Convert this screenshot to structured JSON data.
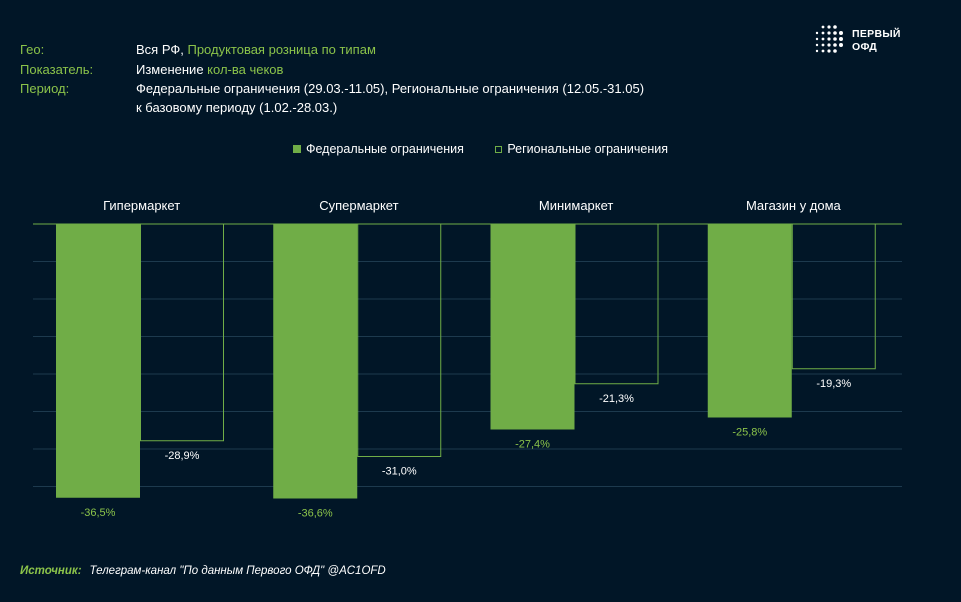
{
  "header": {
    "geo_label": "Гео:",
    "geo_value_1": "Вся РФ, ",
    "geo_value_2": "Продуктовая розница по типам",
    "metric_label": "Показатель:",
    "metric_value_1": "Изменение ",
    "metric_value_2": "кол-ва чеков",
    "period_label": "Период:",
    "period_value_line1": "Федеральные ограничения (29.03.-11.05), Региональные ограничения (12.05.-31.05)",
    "period_value_line2": "к базовому периоду (1.02.-28.03.)"
  },
  "logo": {
    "line1": "ПЕРВЫЙ",
    "line2": "ОФД"
  },
  "colors": {
    "background": "#011627",
    "accent": "#70ad47",
    "label_green": "#8bc34a"
  },
  "chart_data": {
    "type": "bar",
    "categories": [
      "Гипермаркет",
      "Супермаркет",
      "Минимаркет",
      "Магазин у дома"
    ],
    "series": [
      {
        "name": "Федеральные ограничения",
        "values": [
          -36.5,
          -36.6,
          -27.4,
          -25.8
        ],
        "labels": [
          "-36,5%",
          "-36,6%",
          "-27,4%",
          "-25,8%"
        ],
        "style": "filled"
      },
      {
        "name": "Региональные ограничения",
        "values": [
          -28.9,
          -31.0,
          -21.3,
          -19.3
        ],
        "labels": [
          "-28,9%",
          "-31,0%",
          "-21,3%",
          "-19,3%"
        ],
        "style": "outline"
      }
    ],
    "ylim": [
      -40,
      0
    ],
    "grid": true,
    "legend_position": "top-center",
    "category_labels_position": "top"
  },
  "source": {
    "label": "Источник:",
    "text": "Телеграм-канал \"По данным Первого ОФД\" @AC1OFD"
  }
}
